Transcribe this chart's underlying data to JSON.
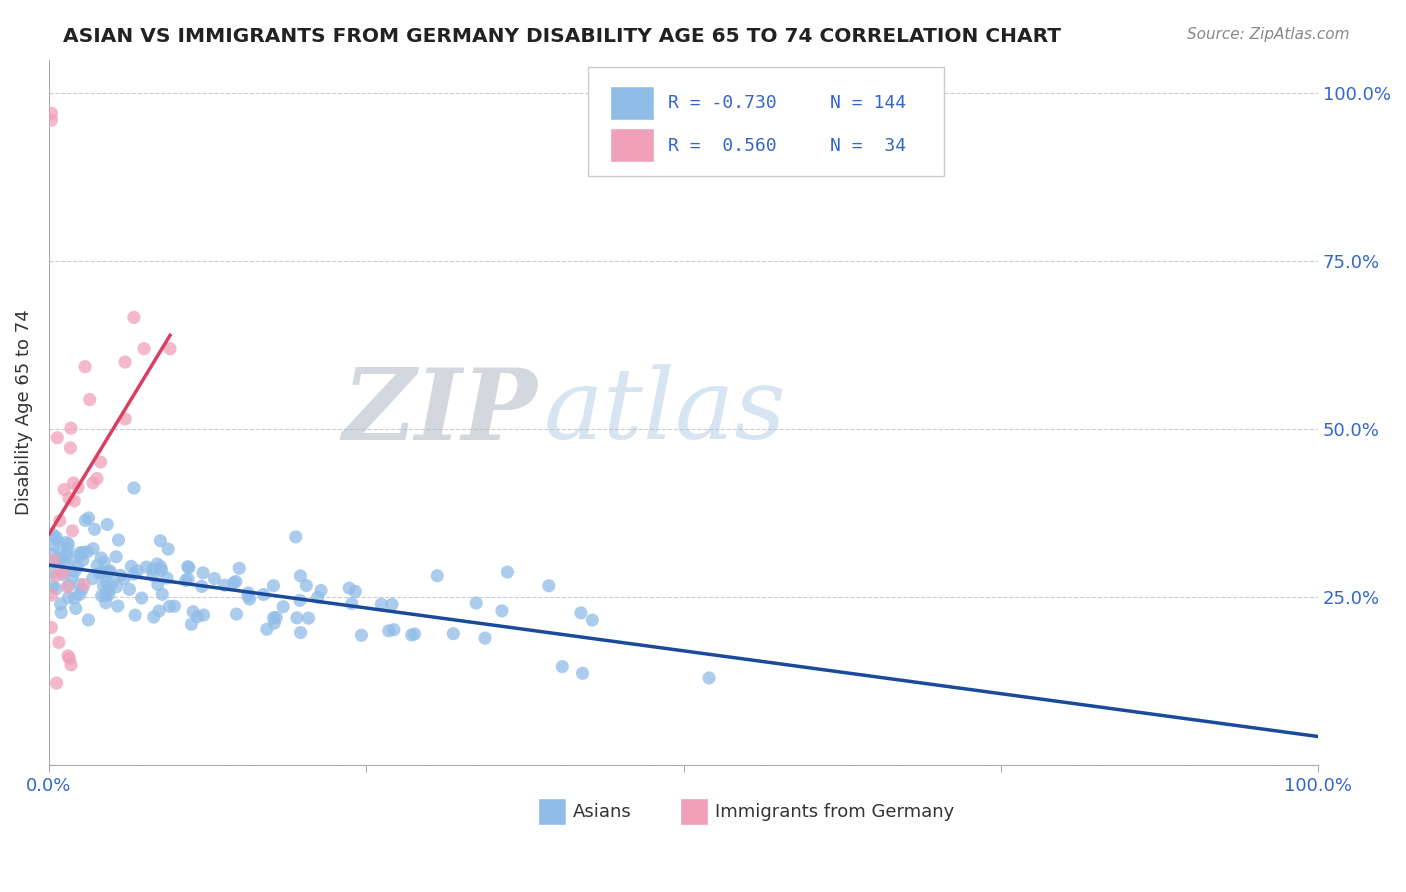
{
  "title": "ASIAN VS IMMIGRANTS FROM GERMANY DISABILITY AGE 65 TO 74 CORRELATION CHART",
  "source": "Source: ZipAtlas.com",
  "ylabel": "Disability Age 65 to 74",
  "xlim": [
    0.0,
    1.0
  ],
  "ylim": [
    0.0,
    1.05
  ],
  "blue_color": "#90bce8",
  "pink_color": "#f0a0b8",
  "blue_line_color": "#1a4a99",
  "pink_line_color": "#d94060",
  "background_color": "#ffffff",
  "grid_color": "#cccccc",
  "tick_color": "#3366cc",
  "watermark_zip_color": "#c8cfd8",
  "watermark_atlas_color": "#b8cce0",
  "legend_r_blue": "R = -0.730",
  "legend_n_blue": "N = 144",
  "legend_r_pink": "R =  0.560",
  "legend_n_pink": "N =  34",
  "legend_color": "#3366cc"
}
